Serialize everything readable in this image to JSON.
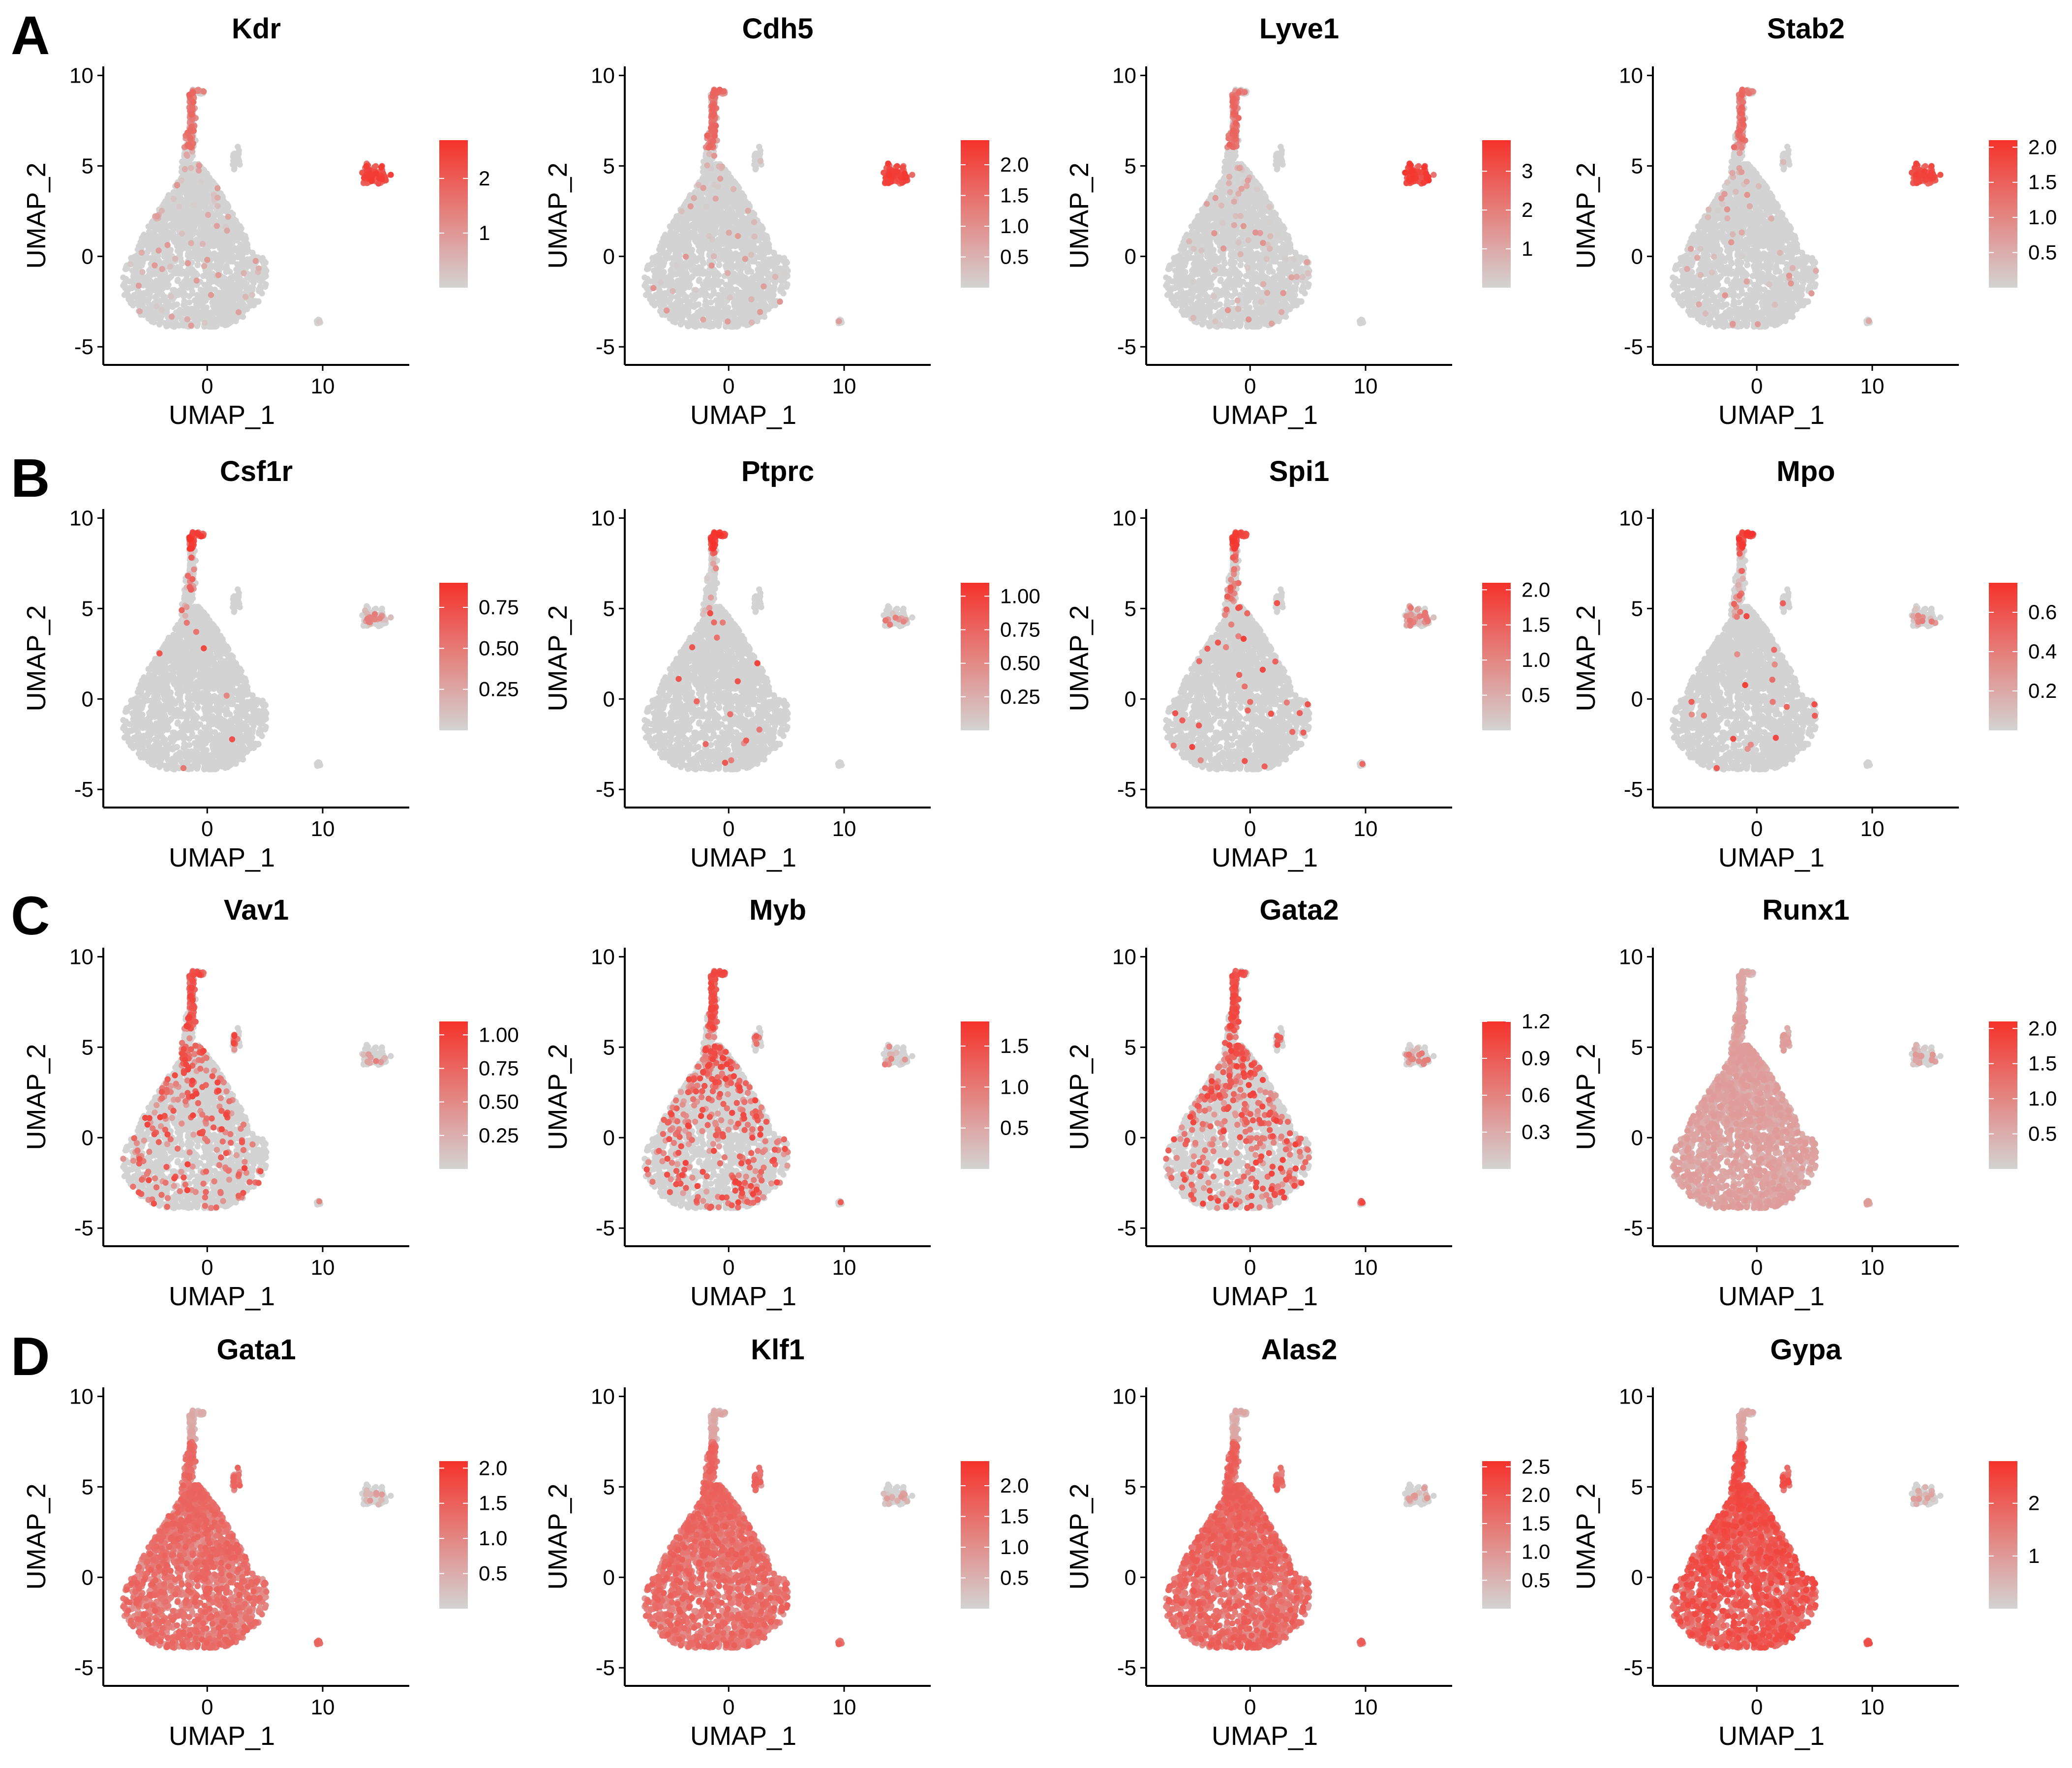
{
  "figure": {
    "panels": [
      {
        "letter": "A",
        "row": 0
      },
      {
        "letter": "B",
        "row": 1
      },
      {
        "letter": "C",
        "row": 2
      },
      {
        "letter": "D",
        "row": 3
      }
    ]
  },
  "colors": {
    "low": "#d3d3d3",
    "high": "#f5322b",
    "axis": "#000000"
  },
  "chart_data": [
    {
      "type": "scatter",
      "title": "Kdr",
      "xlabel": "UMAP_1",
      "ylabel": "UMAP_2",
      "xlim": [
        -9,
        17.5
      ],
      "ylim": [
        -6,
        10.5
      ],
      "xticks": [
        0,
        10
      ],
      "yticks": [
        -5,
        0,
        5,
        10
      ],
      "legend": {
        "range": [
          0,
          2.7
        ],
        "ticks": [
          "2",
          "1"
        ],
        "tick_values": [
          2,
          1
        ]
      },
      "pattern": "endothelial",
      "intensity": 0.9,
      "grid": false
    },
    {
      "type": "scatter",
      "title": "Cdh5",
      "xlabel": "UMAP_1",
      "ylabel": "UMAP_2",
      "xlim": [
        -9,
        17.5
      ],
      "ylim": [
        -6,
        10.5
      ],
      "xticks": [
        0,
        10
      ],
      "yticks": [
        -5,
        0,
        5,
        10
      ],
      "legend": {
        "range": [
          0,
          2.4
        ],
        "ticks": [
          "2.0",
          "1.5",
          "1.0",
          "0.5"
        ],
        "tick_values": [
          2.0,
          1.5,
          1.0,
          0.5
        ]
      },
      "pattern": "endothelial",
      "intensity": 0.92,
      "grid": false
    },
    {
      "type": "scatter",
      "title": "Lyve1",
      "xlabel": "UMAP_1",
      "ylabel": "UMAP_2",
      "xlim": [
        -9,
        17.5
      ],
      "ylim": [
        -6,
        10.5
      ],
      "xticks": [
        0,
        10
      ],
      "yticks": [
        -5,
        0,
        5,
        10
      ],
      "legend": {
        "range": [
          0,
          3.8
        ],
        "ticks": [
          "3",
          "2",
          "1"
        ],
        "tick_values": [
          3,
          2,
          1
        ]
      },
      "pattern": "endothelial",
      "intensity": 0.95,
      "grid": false
    },
    {
      "type": "scatter",
      "title": "Stab2",
      "xlabel": "UMAP_1",
      "ylabel": "UMAP_2",
      "xlim": [
        -9,
        17.5
      ],
      "ylim": [
        -6,
        10.5
      ],
      "xticks": [
        0,
        10
      ],
      "yticks": [
        -5,
        0,
        5,
        10
      ],
      "legend": {
        "range": [
          0,
          2.1
        ],
        "ticks": [
          "2.0",
          "1.5",
          "1.0",
          "0.5"
        ],
        "tick_values": [
          2.0,
          1.5,
          1.0,
          0.5
        ]
      },
      "pattern": "endothelial",
      "intensity": 0.8,
      "grid": false
    },
    {
      "type": "scatter",
      "title": "Csf1r",
      "xlabel": "UMAP_1",
      "ylabel": "UMAP_2",
      "xlim": [
        -9,
        17.5
      ],
      "ylim": [
        -6,
        10.5
      ],
      "xticks": [
        0,
        10
      ],
      "yticks": [
        -5,
        0,
        5,
        10
      ],
      "legend": {
        "range": [
          0,
          0.9
        ],
        "ticks": [
          "0.75",
          "0.50",
          "0.25"
        ],
        "tick_values": [
          0.75,
          0.5,
          0.25
        ]
      },
      "pattern": "tip",
      "intensity": 0.3,
      "grid": false
    },
    {
      "type": "scatter",
      "title": "Ptprc",
      "xlabel": "UMAP_1",
      "ylabel": "UMAP_2",
      "xlim": [
        -9,
        17.5
      ],
      "ylim": [
        -6,
        10.5
      ],
      "xticks": [
        0,
        10
      ],
      "yticks": [
        -5,
        0,
        5,
        10
      ],
      "legend": {
        "range": [
          0,
          1.1
        ],
        "ticks": [
          "1.00",
          "0.75",
          "0.50",
          "0.25"
        ],
        "tick_values": [
          1.0,
          0.75,
          0.5,
          0.25
        ]
      },
      "pattern": "tip",
      "intensity": 0.2,
      "grid": false
    },
    {
      "type": "scatter",
      "title": "Spi1",
      "xlabel": "UMAP_1",
      "ylabel": "UMAP_2",
      "xlim": [
        -9,
        17.5
      ],
      "ylim": [
        -6,
        10.5
      ],
      "xticks": [
        0,
        10
      ],
      "yticks": [
        -5,
        0,
        5,
        10
      ],
      "legend": {
        "range": [
          0,
          2.1
        ],
        "ticks": [
          "2.0",
          "1.5",
          "1.0",
          "0.5"
        ],
        "tick_values": [
          2.0,
          1.5,
          1.0,
          0.5
        ]
      },
      "pattern": "tip",
      "intensity": 0.6,
      "grid": false
    },
    {
      "type": "scatter",
      "title": "Mpo",
      "xlabel": "UMAP_1",
      "ylabel": "UMAP_2",
      "xlim": [
        -9,
        17.5
      ],
      "ylim": [
        -6,
        10.5
      ],
      "xticks": [
        0,
        10
      ],
      "yticks": [
        -5,
        0,
        5,
        10
      ],
      "legend": {
        "range": [
          0,
          0.75
        ],
        "ticks": [
          "0.6",
          "0.4",
          "0.2"
        ],
        "tick_values": [
          0.6,
          0.4,
          0.2
        ]
      },
      "pattern": "tip",
      "intensity": 0.3,
      "grid": false
    },
    {
      "type": "scatter",
      "title": "Vav1",
      "xlabel": "UMAP_1",
      "ylabel": "UMAP_2",
      "xlim": [
        -9,
        17.5
      ],
      "ylim": [
        -6,
        10.5
      ],
      "xticks": [
        0,
        10
      ],
      "yticks": [
        -5,
        0,
        5,
        10
      ],
      "legend": {
        "range": [
          0,
          1.1
        ],
        "ticks": [
          "1.00",
          "0.75",
          "0.50",
          "0.25"
        ],
        "tick_values": [
          1.0,
          0.75,
          0.5,
          0.25
        ]
      },
      "pattern": "sparse",
      "intensity": 0.25,
      "grid": false
    },
    {
      "type": "scatter",
      "title": "Myb",
      "xlabel": "UMAP_1",
      "ylabel": "UMAP_2",
      "xlim": [
        -9,
        17.5
      ],
      "ylim": [
        -6,
        10.5
      ],
      "xticks": [
        0,
        10
      ],
      "yticks": [
        -5,
        0,
        5,
        10
      ],
      "legend": {
        "range": [
          0,
          1.8
        ],
        "ticks": [
          "1.5",
          "1.0",
          "0.5"
        ],
        "tick_values": [
          1.5,
          1.0,
          0.5
        ]
      },
      "pattern": "sparse",
      "intensity": 0.45,
      "grid": false
    },
    {
      "type": "scatter",
      "title": "Gata2",
      "xlabel": "UMAP_1",
      "ylabel": "UMAP_2",
      "xlim": [
        -9,
        17.5
      ],
      "ylim": [
        -6,
        10.5
      ],
      "xticks": [
        0,
        10
      ],
      "yticks": [
        -5,
        0,
        5,
        10
      ],
      "legend": {
        "range": [
          0,
          1.2
        ],
        "ticks": [
          "1.2",
          "0.9",
          "0.6",
          "0.3"
        ],
        "tick_values": [
          1.2,
          0.9,
          0.6,
          0.3
        ]
      },
      "pattern": "sparse",
      "intensity": 0.5,
      "grid": false
    },
    {
      "type": "scatter",
      "title": "Runx1",
      "xlabel": "UMAP_1",
      "ylabel": "UMAP_2",
      "xlim": [
        -9,
        17.5
      ],
      "ylim": [
        -6,
        10.5
      ],
      "xticks": [
        0,
        10
      ],
      "yticks": [
        -5,
        0,
        5,
        10
      ],
      "legend": {
        "range": [
          0,
          2.1
        ],
        "ticks": [
          "2.0",
          "1.5",
          "1.0",
          "0.5"
        ],
        "tick_values": [
          2.0,
          1.5,
          1.0,
          0.5
        ]
      },
      "pattern": "broad",
      "intensity": 0.35,
      "grid": false
    },
    {
      "type": "scatter",
      "title": "Gata1",
      "xlabel": "UMAP_1",
      "ylabel": "UMAP_2",
      "xlim": [
        -9,
        17.5
      ],
      "ylim": [
        -6,
        10.5
      ],
      "xticks": [
        0,
        10
      ],
      "yticks": [
        -5,
        0,
        5,
        10
      ],
      "legend": {
        "range": [
          0,
          2.1
        ],
        "ticks": [
          "2.0",
          "1.5",
          "1.0",
          "0.5"
        ],
        "tick_values": [
          2.0,
          1.5,
          1.0,
          0.5
        ]
      },
      "pattern": "broad",
      "intensity": 0.7,
      "grid": false
    },
    {
      "type": "scatter",
      "title": "Klf1",
      "xlabel": "UMAP_1",
      "ylabel": "UMAP_2",
      "xlim": [
        -9,
        17.5
      ],
      "ylim": [
        -6,
        10.5
      ],
      "xticks": [
        0,
        10
      ],
      "yticks": [
        -5,
        0,
        5,
        10
      ],
      "legend": {
        "range": [
          0,
          2.4
        ],
        "ticks": [
          "2.0",
          "1.5",
          "1.0",
          "0.5"
        ],
        "tick_values": [
          2.0,
          1.5,
          1.0,
          0.5
        ]
      },
      "pattern": "broad",
      "intensity": 0.72,
      "grid": false
    },
    {
      "type": "scatter",
      "title": "Alas2",
      "xlabel": "UMAP_1",
      "ylabel": "UMAP_2",
      "xlim": [
        -9,
        17.5
      ],
      "ylim": [
        -6,
        10.5
      ],
      "xticks": [
        0,
        10
      ],
      "yticks": [
        -5,
        0,
        5,
        10
      ],
      "legend": {
        "range": [
          0,
          2.6
        ],
        "ticks": [
          "2.5",
          "2.0",
          "1.5",
          "1.0",
          "0.5"
        ],
        "tick_values": [
          2.5,
          2.0,
          1.5,
          1.0,
          0.5
        ]
      },
      "pattern": "broad",
      "intensity": 0.75,
      "grid": false
    },
    {
      "type": "scatter",
      "title": "Gypa",
      "xlabel": "UMAP_1",
      "ylabel": "UMAP_2",
      "xlim": [
        -9,
        17.5
      ],
      "ylim": [
        -6,
        10.5
      ],
      "xticks": [
        0,
        10
      ],
      "yticks": [
        -5,
        0,
        5,
        10
      ],
      "legend": {
        "range": [
          0,
          2.8
        ],
        "ticks": [
          "2",
          "1"
        ],
        "tick_values": [
          2,
          1
        ]
      },
      "pattern": "broad",
      "intensity": 0.88,
      "grid": false
    }
  ]
}
